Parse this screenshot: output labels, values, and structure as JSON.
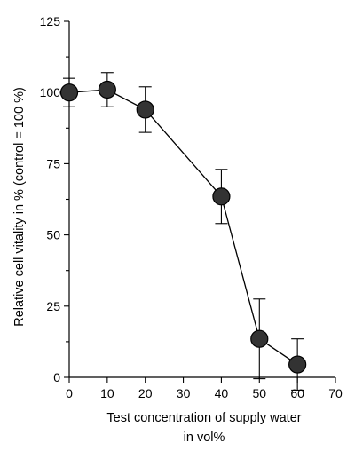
{
  "chart_data": {
    "type": "scatter",
    "xlabel_line1": "Test concentration of supply water",
    "xlabel_line2": "in vol%",
    "ylabel": "Relative cell vitality in % (control = 100 %)",
    "xlim": [
      0,
      70
    ],
    "ylim": [
      0,
      125
    ],
    "x_ticks": [
      "0",
      "10",
      "20",
      "30",
      "40",
      "50",
      "60",
      "70"
    ],
    "y_ticks": [
      "0",
      "25",
      "50",
      "75",
      "100",
      "125"
    ],
    "grid": false,
    "legend": "none",
    "series": [
      {
        "x": [
          0,
          10,
          20,
          40,
          50,
          60
        ],
        "y": [
          100,
          101,
          94,
          63.5,
          13.5,
          4.5
        ],
        "error": [
          5,
          6,
          8,
          9.5,
          14,
          9
        ],
        "connected": true,
        "marker": "circle",
        "color": "#333333"
      }
    ]
  }
}
